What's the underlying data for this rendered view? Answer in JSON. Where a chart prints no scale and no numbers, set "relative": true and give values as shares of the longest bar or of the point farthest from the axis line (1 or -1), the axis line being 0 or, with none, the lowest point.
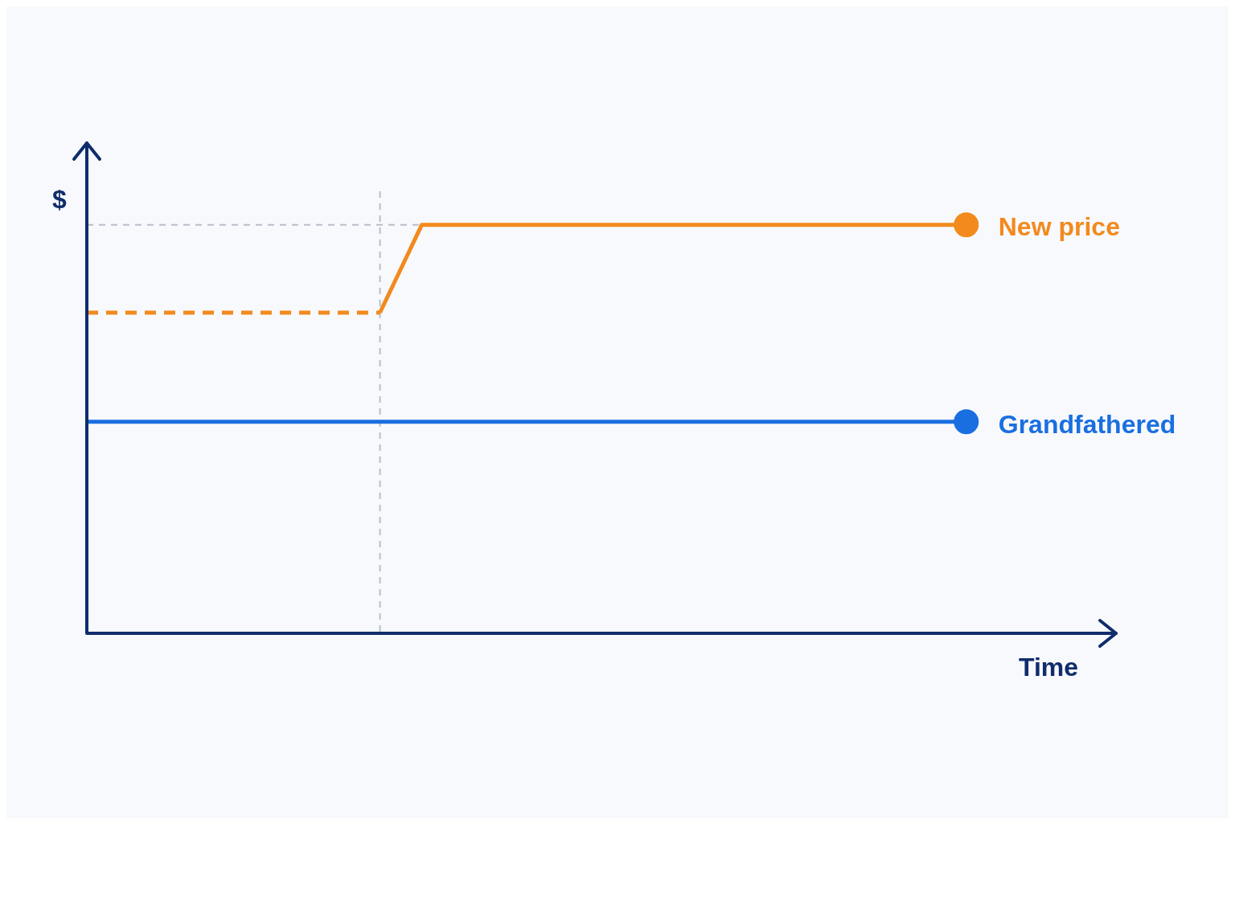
{
  "chart_data": {
    "type": "line",
    "relative": true,
    "xlabel": "Time",
    "ylabel": "$",
    "categories": [
      null,
      null,
      null,
      null,
      null,
      null,
      null,
      null,
      null,
      null,
      null,
      null,
      null,
      null,
      null,
      null,
      null,
      null,
      null,
      null,
      null,
      null,
      null,
      null,
      null
    ],
    "series": [
      {
        "color": "#f28a1e",
        "line_style": "dashed",
        "values": [
          0.785,
          0.785,
          0.785,
          0.785,
          0.785,
          0.785,
          0.785,
          0.785,
          null,
          null,
          null,
          null,
          null,
          null,
          null,
          null,
          null,
          null,
          null,
          null,
          null,
          null,
          null,
          null,
          null
        ]
      },
      {
        "name": "New price",
        "color": "#f28a1e",
        "line_style": "solid",
        "values": [
          null,
          null,
          null,
          null,
          null,
          null,
          null,
          0.785,
          1,
          1,
          1,
          1,
          1,
          1,
          1,
          1,
          1,
          1,
          1,
          1,
          1,
          1,
          null,
          null,
          null
        ]
      },
      {
        "name": "Grandfathered",
        "color": "#1a6fe0",
        "line_style": "solid",
        "values": [
          0.518,
          0.518,
          0.518,
          0.518,
          0.518,
          0.518,
          0.518,
          0.518,
          0.518,
          0.518,
          0.518,
          0.518,
          0.518,
          0.518,
          0.518,
          0.518,
          0.518,
          0.518,
          0.518,
          0.518,
          0.518,
          0.518,
          null,
          null,
          null
        ]
      }
    ],
    "ref_lines": [
      {
        "axis": "y",
        "value": 1,
        "color": "#b8bfcc",
        "line_style": "dashed"
      }
    ],
    "grid": false,
    "legend": false
  }
}
